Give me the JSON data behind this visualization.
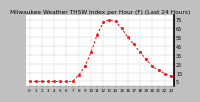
{
  "title": "Milwaukee Weather THSW Index per Hour (F) (Last 24 Hours)",
  "x": [
    0,
    1,
    2,
    3,
    4,
    5,
    6,
    7,
    8,
    9,
    10,
    11,
    12,
    13,
    14,
    15,
    16,
    17,
    18,
    19,
    20,
    21,
    22,
    23
  ],
  "y": [
    5,
    5,
    5,
    5,
    5,
    5,
    5,
    5,
    12,
    22,
    38,
    58,
    72,
    75,
    73,
    65,
    55,
    47,
    38,
    30,
    22,
    18,
    14,
    11
  ],
  "line_color": "#ff0000",
  "marker_color": "#ff0000",
  "bg_color": "#c0c0c0",
  "plot_bg": "#ffffff",
  "grid_color": "#aaaaaa",
  "text_color": "#000000",
  "title_color": "#000000",
  "right_border_color": "#000000",
  "ylim": [
    0,
    80
  ],
  "xlim": [
    -0.5,
    23.5
  ],
  "yticks": [
    5,
    15,
    25,
    35,
    45,
    55,
    65,
    75
  ],
  "ylabel_fontsize": 3.5,
  "xlabel_fontsize": 3.0,
  "title_fontsize": 4.2,
  "vgrid_positions": [
    0,
    2,
    4,
    6,
    8,
    10,
    12,
    14,
    16,
    18,
    20,
    22
  ]
}
